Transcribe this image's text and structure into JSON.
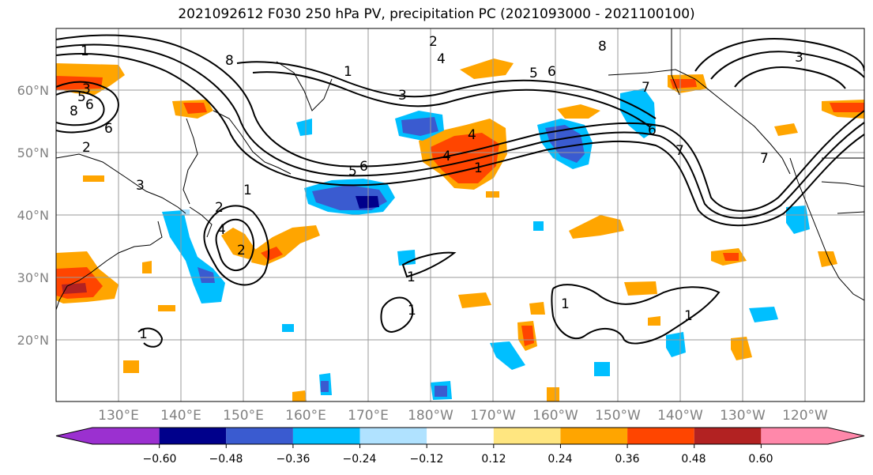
{
  "title": "2021092612 F030 250 hPa PV, precipitation PC (2021093000 - 2021100100)",
  "lat_labels": [
    "60°N",
    "50°N",
    "40°N",
    "30°N",
    "20°N"
  ],
  "lon_labels": [
    "130°E",
    "140°E",
    "150°E",
    "160°E",
    "170°E",
    "180°W",
    "170°W",
    "160°W",
    "150°W",
    "140°W",
    "130°W",
    "120°W"
  ],
  "contour_labels": [
    "1",
    "8",
    "2",
    "4",
    "5",
    "3",
    "6",
    "7",
    "2",
    "3",
    "6",
    "8",
    "5",
    "6",
    "1",
    "3",
    "7",
    "4",
    "1",
    "5",
    "6",
    "1",
    "4",
    "1",
    "2",
    "3",
    "2",
    "1",
    "1",
    "1",
    "1",
    "6",
    "8",
    "7",
    "4"
  ],
  "colorbar": {
    "tick_labels": [
      "−0.60",
      "−0.48",
      "−0.36",
      "−0.24",
      "−0.12",
      "0.12",
      "0.24",
      "0.36",
      "0.48",
      "0.60"
    ],
    "colors": [
      "#9b30d0",
      "#00008b",
      "#3a5bd0",
      "#00bfff",
      "#b0e2ff",
      "#ffffff",
      "#ffe680",
      "#ffa500",
      "#ff4500",
      "#b22222",
      "#ff88aa"
    ]
  }
}
